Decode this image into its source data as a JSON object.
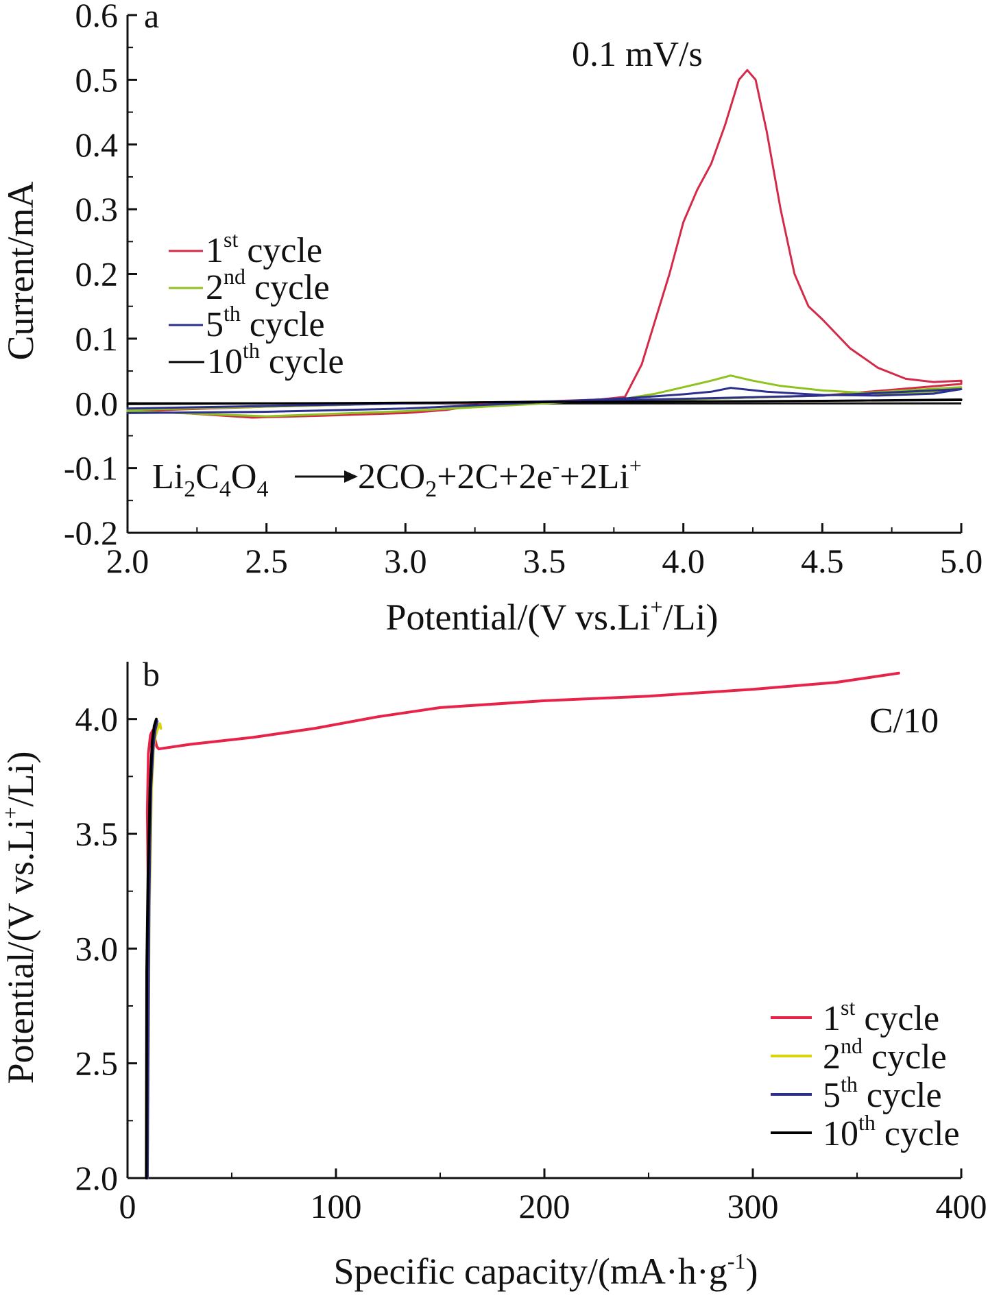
{
  "chart_data": [
    {
      "type": "line",
      "panel_label": "a",
      "annotation": "0.1 mV/s",
      "reaction": {
        "left": "Li",
        "left_sub1": "2",
        "left_mid": "C",
        "left_sub2": "4",
        "left_end": "O",
        "left_sub3": "4",
        "right_a": "2CO",
        "right_a_sub": "2",
        "right_b": "+2C+2e",
        "right_b_sup": "-",
        "right_c": "+2Li",
        "right_c_sup": "+"
      },
      "xlabel": "Potential/(V vs.Li",
      "xlabel_sup": "+",
      "xlabel_end": "/Li)",
      "ylabel": "Current/mA",
      "xlim": [
        2.0,
        5.0
      ],
      "ylim": [
        -0.2,
        0.6
      ],
      "xticks": [
        "2.0",
        "2.5",
        "3.0",
        "3.5",
        "4.0",
        "4.5",
        "5.0"
      ],
      "yticks": [
        "0.6",
        "0.5",
        "0.4",
        "0.3",
        "0.2",
        "0.1",
        "0.0",
        "-0.1",
        "-0.2"
      ],
      "legend": [
        {
          "num": "1",
          "sup": "st",
          "text": " cycle",
          "color": "#d42a4a"
        },
        {
          "num": "2",
          "sup": "nd",
          "text": " cycle",
          "color": "#8ec21f"
        },
        {
          "num": "5",
          "sup": "th",
          "text": " cycle",
          "color": "#2d2f8f"
        },
        {
          "num": "10",
          "sup": "th",
          "text": " cycle",
          "color": "#000000"
        }
      ],
      "series": [
        {
          "color": "#d42a4a",
          "x": [
            2.0,
            2.2,
            2.45,
            2.7,
            3.0,
            3.15,
            3.3,
            3.5,
            3.7,
            3.79,
            3.85,
            3.9,
            3.95,
            4.0,
            4.05,
            4.1,
            4.15,
            4.2,
            4.23,
            4.26,
            4.3,
            4.35,
            4.4,
            4.45,
            4.5,
            4.6,
            4.7,
            4.8,
            4.9,
            5.0,
            5.0,
            4.5,
            4.0,
            3.8,
            3.5,
            3.0,
            2.5,
            2.0
          ],
          "y": [
            -0.012,
            -0.015,
            -0.022,
            -0.019,
            -0.015,
            -0.01,
            0.0,
            0.003,
            0.006,
            0.01,
            0.06,
            0.13,
            0.2,
            0.28,
            0.33,
            0.37,
            0.43,
            0.5,
            0.515,
            0.5,
            0.42,
            0.3,
            0.2,
            0.15,
            0.13,
            0.085,
            0.055,
            0.038,
            0.033,
            0.035,
            0.03,
            0.012,
            0.006,
            0.005,
            0.002,
            0.0,
            -0.005,
            -0.012
          ]
        },
        {
          "color": "#8ec21f",
          "x": [
            2.0,
            2.5,
            3.0,
            3.5,
            3.8,
            3.9,
            4.0,
            4.1,
            4.17,
            4.25,
            4.35,
            4.5,
            4.7,
            4.9,
            5.0,
            4.8,
            4.5,
            4.0,
            3.5,
            3.0,
            2.5,
            2.0
          ],
          "y": [
            -0.012,
            -0.02,
            -0.012,
            0.0,
            0.008,
            0.015,
            0.025,
            0.035,
            0.043,
            0.035,
            0.027,
            0.02,
            0.015,
            0.018,
            0.025,
            0.02,
            0.012,
            0.006,
            0.003,
            0.0,
            -0.005,
            -0.01
          ]
        },
        {
          "color": "#2d2f8f",
          "x": [
            2.0,
            2.5,
            3.0,
            3.5,
            3.8,
            4.0,
            4.1,
            4.17,
            4.3,
            4.5,
            4.7,
            4.9,
            5.0,
            4.8,
            4.5,
            4.0,
            3.5,
            3.0,
            2.5,
            2.0
          ],
          "y": [
            -0.015,
            -0.013,
            -0.008,
            0.002,
            0.008,
            0.014,
            0.018,
            0.024,
            0.018,
            0.013,
            0.012,
            0.015,
            0.022,
            0.018,
            0.012,
            0.007,
            0.003,
            0.0,
            -0.004,
            -0.008
          ]
        },
        {
          "color": "#000000",
          "x": [
            2.0,
            2.5,
            3.0,
            3.5,
            4.0,
            4.5,
            5.0,
            5.0,
            4.5,
            4.0,
            3.5,
            3.0,
            2.5,
            2.0
          ],
          "y": [
            0.0,
            0.0,
            0.001,
            0.002,
            0.003,
            0.004,
            0.006,
            0.005,
            0.004,
            0.003,
            0.002,
            0.001,
            0.0,
            -0.001
          ]
        }
      ]
    },
    {
      "type": "line",
      "panel_label": "b",
      "annotation": "C/10",
      "xlabel": "Specific capacity/(mA·h·g",
      "xlabel_sup": "-1",
      "xlabel_end": ")",
      "ylabel": "Potential/(V vs.Li",
      "ylabel_sup": "+",
      "ylabel_end": "/Li)",
      "xlim": [
        0,
        400
      ],
      "ylim": [
        2.0,
        4.25
      ],
      "xticks": [
        "0",
        "100",
        "200",
        "300",
        "400"
      ],
      "yticks": [
        "4.0",
        "3.5",
        "3.0",
        "2.5",
        "2.0"
      ],
      "legend": [
        {
          "num": "1",
          "sup": "st",
          "text": " cycle",
          "color": "#e8234a"
        },
        {
          "num": "2",
          "sup": "nd",
          "text": " cycle",
          "color": "#d7d40f"
        },
        {
          "num": "5",
          "sup": "th",
          "text": " cycle",
          "color": "#2d2f8f"
        },
        {
          "num": "10",
          "sup": "th",
          "text": " cycle",
          "color": "#000000"
        }
      ],
      "series": [
        {
          "color": "#e8234a",
          "x": [
            10,
            9.5,
            10,
            11,
            12,
            13,
            14,
            15,
            30,
            60,
            90,
            120,
            150,
            200,
            250,
            300,
            340,
            370
          ],
          "y": [
            3.15,
            3.6,
            3.85,
            3.93,
            3.95,
            3.92,
            3.88,
            3.87,
            3.89,
            3.92,
            3.96,
            4.01,
            4.05,
            4.08,
            4.1,
            4.13,
            4.16,
            4.2
          ]
        },
        {
          "color": "#d7d40f",
          "x": [
            9.5,
            10.5,
            11.5,
            12.5,
            13.5,
            14.5,
            15.5,
            16
          ],
          "y": [
            2.0,
            3.2,
            3.7,
            3.88,
            3.93,
            3.96,
            3.98,
            3.96
          ]
        },
        {
          "color": "#2d2f8f",
          "x": [
            9.5,
            10.3,
            11.2,
            12.3,
            13.2,
            14.2
          ],
          "y": [
            2.0,
            3.2,
            3.7,
            3.88,
            3.95,
            3.99
          ]
        },
        {
          "color": "#000000",
          "x": [
            9,
            9.2,
            9.8,
            10.8,
            11.8,
            12.8,
            13.8
          ],
          "y": [
            2.0,
            2.9,
            3.3,
            3.7,
            3.9,
            3.97,
            4.0
          ]
        }
      ]
    }
  ]
}
